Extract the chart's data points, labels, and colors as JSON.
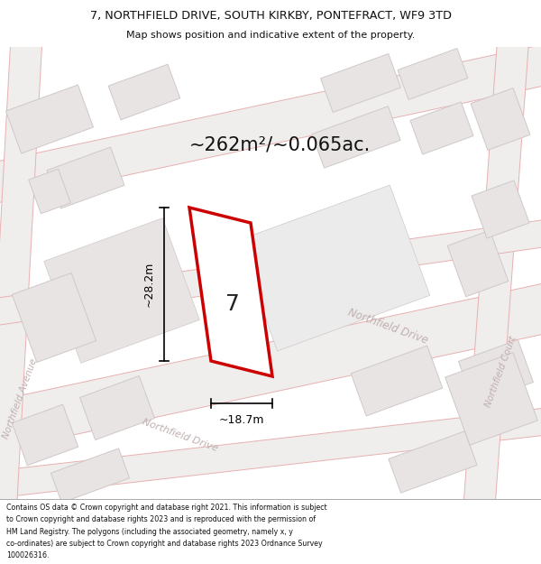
{
  "title_line1": "7, NORTHFIELD DRIVE, SOUTH KIRKBY, PONTEFRACT, WF9 3TD",
  "title_line2": "Map shows position and indicative extent of the property.",
  "area_text": "~262m²/~0.065ac.",
  "width_label": "~18.7m",
  "height_label": "~28.2m",
  "number_label": "7",
  "footer_lines": [
    "Contains OS data © Crown copyright and database right 2021. This information is subject",
    "to Crown copyright and database rights 2023 and is reproduced with the permission of",
    "HM Land Registry. The polygons (including the associated geometry, namely x, y",
    "co-ordinates) are subject to Crown copyright and database rights 2023 Ordnance Survey",
    "100026316."
  ],
  "bg_color": "#f7f2f2",
  "building_fill": "#e8e4e4",
  "building_edge": "#d0c8c8",
  "road_outline": "#e8b0b0",
  "plot_fill": "#ffffff",
  "plot_edge": "#cc0000",
  "street_label_color": "#c0b0b0",
  "dim_color": "#000000",
  "text_color": "#111111",
  "title_color": "#111111",
  "footer_color": "#111111"
}
